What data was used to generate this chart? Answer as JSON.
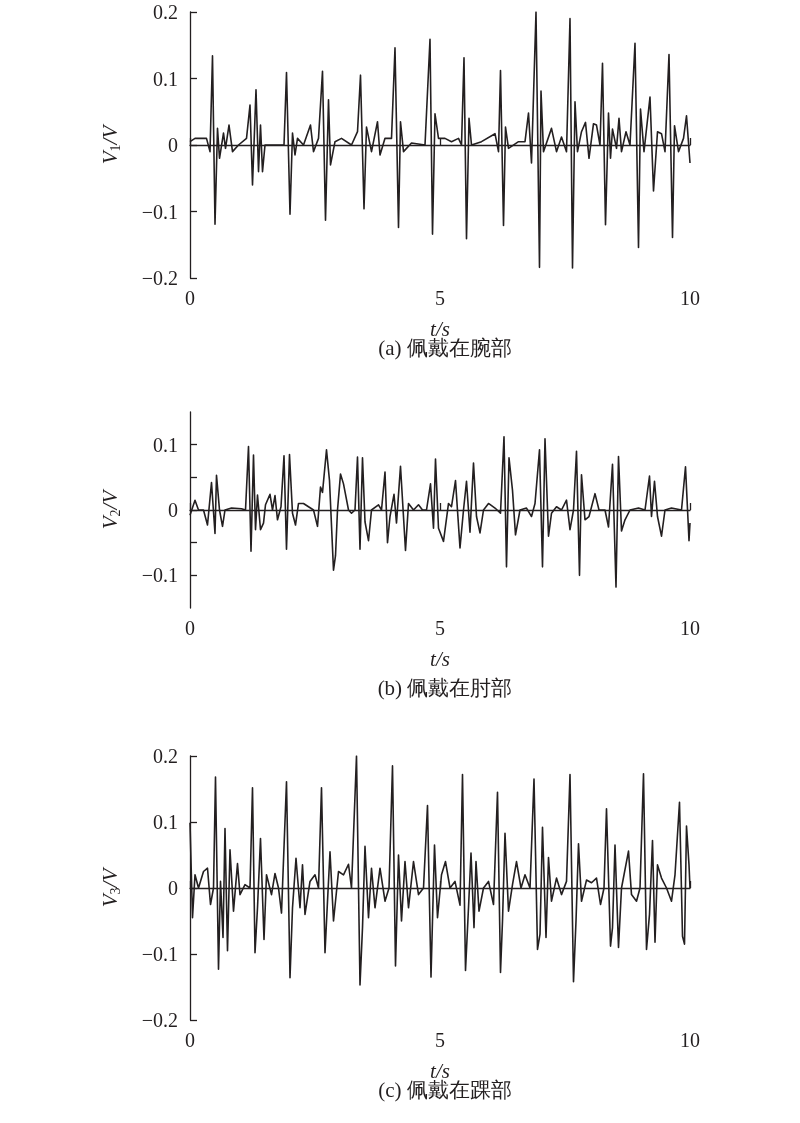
{
  "chart_data": [
    {
      "type": "line",
      "title": "(a) 佩戴在腕部",
      "xlabel": "t/s",
      "ylabel": "V$_{1}$/V",
      "xlim": [
        0,
        10
      ],
      "xticks": [
        0,
        5,
        10
      ],
      "ylim": [
        -0.2,
        0.2
      ],
      "yticks": [
        0.2,
        0.1,
        0,
        -0.1,
        -0.2
      ],
      "x": [
        0,
        0.1,
        0.33,
        0.4,
        0.45,
        0.5,
        0.55,
        0.59,
        0.67,
        0.71,
        0.78,
        0.85,
        0.97,
        1.13,
        1.2,
        1.25,
        1.32,
        1.37,
        1.41,
        1.45,
        1.5,
        1.63,
        1.88,
        1.93,
        2.0,
        2.05,
        2.1,
        2.15,
        2.27,
        2.41,
        2.47,
        2.57,
        2.65,
        2.71,
        2.77,
        2.81,
        2.9,
        3.03,
        3.23,
        3.35,
        3.41,
        3.48,
        3.53,
        3.63,
        3.75,
        3.8,
        3.9,
        4.03,
        4.1,
        4.17,
        4.21,
        4.27,
        4.43,
        4.7,
        4.8,
        4.85,
        4.9,
        4.97,
        5.1,
        5.23,
        5.37,
        5.43,
        5.48,
        5.53,
        5.58,
        5.63,
        5.83,
        6.1,
        6.17,
        6.21,
        6.27,
        6.31,
        6.37,
        6.57,
        6.7,
        6.77,
        6.83,
        6.92,
        6.99,
        7.02,
        7.07,
        7.23,
        7.33,
        7.43,
        7.53,
        7.6,
        7.65,
        7.7,
        7.75,
        7.83,
        7.91,
        7.98,
        8.07,
        8.13,
        8.2,
        8.25,
        8.31,
        8.37,
        8.41,
        8.45,
        8.53,
        8.58,
        8.63,
        8.72,
        8.8,
        8.9,
        8.97,
        9.01,
        9.08,
        9.2,
        9.27,
        9.35,
        9.43,
        9.5,
        9.58,
        9.65,
        9.69,
        9.77,
        9.87,
        9.93,
        10
      ],
      "series": [
        {
          "color": "#231f20",
          "values": [
            0.005,
            0.01,
            0.01,
            -0.01,
            0.134,
            -0.119,
            0.025,
            -0.02,
            0.018,
            -0.005,
            0.03,
            -0.01,
            0,
            0.01,
            0.06,
            -0.06,
            0.083,
            -0.04,
            0.03,
            -0.04,
            0,
            0,
            0,
            0.109,
            -0.104,
            0.018,
            -0.015,
            0.01,
            0,
            0.03,
            -0.01,
            0.01,
            0.111,
            -0.113,
            0.068,
            -0.03,
            0.005,
            0.01,
            0,
            0.02,
            0.105,
            -0.096,
            0.027,
            -0.01,
            0.035,
            -0.015,
            0.01,
            0.01,
            0.146,
            -0.124,
            0.035,
            -0.01,
            0.003,
            0,
            0.159,
            -0.134,
            0.047,
            0.01,
            0.01,
            0.005,
            0.01,
            0,
            0.131,
            -0.141,
            0.04,
            0,
            0.005,
            0.017,
            -0.01,
            0.112,
            -0.121,
            0.027,
            -0.005,
            0.005,
            0.005,
            0.048,
            -0.027,
            0.2,
            -0.184,
            0.081,
            -0.01,
            0.025,
            -0.01,
            0.012,
            -0.01,
            0.19,
            -0.185,
            0.065,
            -0.01,
            0.02,
            0.034,
            -0.02,
            0.032,
            0.03,
            0,
            0.123,
            -0.12,
            0.048,
            -0.02,
            0.024,
            -0.005,
            0.04,
            -0.01,
            0.02,
            0,
            0.153,
            -0.154,
            0.054,
            -0.01,
            0.072,
            -0.069,
            0.02,
            0.017,
            -0.01,
            0.136,
            -0.139,
            0.029,
            -0.01,
            0.01,
            0.044,
            -0.027
          ]
        }
      ]
    },
    {
      "type": "line",
      "title": "(b) 佩戴在肘部",
      "xlabel": "t/s",
      "ylabel": "V$_{2}$/V",
      "xlim": [
        0,
        10
      ],
      "xticks": [
        0,
        5,
        10
      ],
      "ylim": [
        -0.15,
        0.15
      ],
      "yticks": [
        0.1,
        {
          "value": 0.05,
          "label": null
        },
        0,
        {
          "value": -0.05,
          "label": null
        },
        -0.1
      ],
      "x": [
        0,
        0.1,
        0.17,
        0.27,
        0.35,
        0.43,
        0.5,
        0.53,
        0.59,
        0.65,
        0.7,
        0.83,
        1.03,
        1.11,
        1.17,
        1.22,
        1.27,
        1.31,
        1.35,
        1.41,
        1.47,
        1.51,
        1.6,
        1.65,
        1.7,
        1.75,
        1.82,
        1.88,
        1.93,
        1.99,
        2.05,
        2.11,
        2.17,
        2.27,
        2.37,
        2.47,
        2.55,
        2.61,
        2.65,
        2.73,
        2.79,
        2.87,
        2.91,
        2.95,
        3.01,
        3.07,
        3.17,
        3.23,
        3.3,
        3.35,
        3.4,
        3.45,
        3.5,
        3.57,
        3.63,
        3.77,
        3.83,
        3.9,
        3.95,
        4.0,
        4.08,
        4.13,
        4.21,
        4.31,
        4.37,
        4.47,
        4.57,
        4.65,
        4.73,
        4.81,
        4.87,
        4.91,
        4.97,
        5.07,
        5.17,
        5.23,
        5.31,
        5.4,
        5.47,
        5.53,
        5.6,
        5.67,
        5.73,
        5.8,
        5.87,
        5.97,
        6.1,
        6.21,
        6.28,
        6.33,
        6.38,
        6.45,
        6.51,
        6.6,
        6.73,
        6.83,
        6.9,
        6.99,
        7.05,
        7.1,
        7.17,
        7.23,
        7.33,
        7.43,
        7.53,
        7.6,
        7.67,
        7.73,
        7.79,
        7.83,
        7.9,
        7.98,
        8.1,
        8.18,
        8.3,
        8.37,
        8.45,
        8.52,
        8.57,
        8.63,
        8.7,
        8.8,
        8.97,
        9.1,
        9.19,
        9.23,
        9.29,
        9.35,
        9.43,
        9.5,
        9.63,
        9.83,
        9.91,
        9.98,
        10
      ],
      "series": [
        {
          "color": "#231f20",
          "values": [
            -0.008,
            0.015,
            0,
            0,
            -0.023,
            0.042,
            -0.036,
            0.053,
            0,
            -0.025,
            0,
            0.003,
            0.002,
            0,
            0.097,
            -0.063,
            0.084,
            -0.03,
            0.023,
            -0.03,
            -0.02,
            0.008,
            0.024,
            0,
            0.022,
            -0.015,
            0.005,
            0.083,
            -0.06,
            0.085,
            -0.005,
            -0.023,
            0.01,
            0.01,
            0.005,
            0,
            -0.025,
            0.035,
            0.027,
            0.092,
            0.045,
            -0.092,
            -0.07,
            0,
            0.055,
            0.04,
            0,
            -0.005,
            0,
            0.081,
            -0.06,
            0.08,
            -0.018,
            -0.047,
            0,
            0.008,
            0,
            0.058,
            -0.05,
            -0.01,
            0.024,
            -0.02,
            0.067,
            -0.062,
            0.01,
            0,
            0.008,
            0,
            0,
            0.04,
            -0.028,
            0.078,
            -0.028,
            -0.048,
            0.01,
            0.005,
            0.045,
            -0.058,
            0,
            0.044,
            -0.034,
            0.072,
            -0.01,
            -0.035,
            0,
            0.01,
            0.003,
            -0.005,
            0.112,
            -0.087,
            0.08,
            0.03,
            -0.038,
            0,
            0.003,
            -0.01,
            0.01,
            0.092,
            -0.087,
            0.109,
            -0.04,
            -0.005,
            0.005,
            0,
            0.015,
            -0.03,
            0,
            0.09,
            -0.1,
            0.054,
            -0.015,
            -0.01,
            0.025,
            0,
            0,
            -0.026,
            0.07,
            -0.118,
            0.082,
            -0.032,
            -0.015,
            0,
            0.003,
            0,
            0.052,
            -0.01,
            0.044,
            -0.01,
            -0.04,
            0,
            0.003,
            0,
            0.066,
            -0.047,
            -0.02
          ]
        }
      ]
    },
    {
      "type": "line",
      "title": "(c) 佩戴在踝部",
      "xlabel": "t/s",
      "ylabel": "V$_{3}$/V",
      "xlim": [
        0,
        10
      ],
      "xticks": [
        0,
        5,
        10
      ],
      "ylim": [
        -0.2,
        0.2
      ],
      "yticks": [
        0.2,
        0.1,
        0,
        -0.1,
        -0.2
      ],
      "x": [
        0,
        0.05,
        0.1,
        0.17,
        0.27,
        0.35,
        0.41,
        0.47,
        0.51,
        0.57,
        0.61,
        0.66,
        0.7,
        0.75,
        0.8,
        0.87,
        0.95,
        1.0,
        1.1,
        1.2,
        1.25,
        1.3,
        1.35,
        1.41,
        1.48,
        1.53,
        1.63,
        1.7,
        1.77,
        1.83,
        1.93,
        2.0,
        2.05,
        2.12,
        2.2,
        2.25,
        2.3,
        2.4,
        2.5,
        2.57,
        2.63,
        2.7,
        2.75,
        2.8,
        2.87,
        2.97,
        3.07,
        3.17,
        3.23,
        3.33,
        3.4,
        3.45,
        3.5,
        3.57,
        3.63,
        3.7,
        3.8,
        3.9,
        3.98,
        4.05,
        4.11,
        4.17,
        4.23,
        4.3,
        4.37,
        4.47,
        4.57,
        4.67,
        4.75,
        4.82,
        4.89,
        4.95,
        5.03,
        5.11,
        5.2,
        5.3,
        5.4,
        5.45,
        5.51,
        5.57,
        5.62,
        5.68,
        5.72,
        5.78,
        5.87,
        5.97,
        6.07,
        6.15,
        6.21,
        6.25,
        6.3,
        6.37,
        6.45,
        6.53,
        6.62,
        6.7,
        6.8,
        6.88,
        6.95,
        7.0,
        7.05,
        7.12,
        7.17,
        7.23,
        7.33,
        7.43,
        7.53,
        7.6,
        7.67,
        7.72,
        7.77,
        7.83,
        7.93,
        8.03,
        8.13,
        8.21,
        8.28,
        8.33,
        8.41,
        8.45,
        8.5,
        8.57,
        8.63,
        8.77,
        8.83,
        8.93,
        9.0,
        9.07,
        9.13,
        9.19,
        9.25,
        9.3,
        9.35,
        9.43,
        9.53,
        9.63,
        9.7,
        9.79,
        9.85,
        9.89,
        9.93,
        9.98,
        10
      ],
      "series": [
        {
          "color": "#231f20",
          "values": [
            0.099,
            -0.045,
            0.02,
            0,
            0.025,
            0.03,
            -0.025,
            0,
            0.168,
            -0.123,
            0.01,
            -0.075,
            0.09,
            -0.095,
            0.058,
            -0.035,
            0.037,
            -0.01,
            0.005,
            0,
            0.152,
            -0.098,
            -0.03,
            0.075,
            -0.078,
            0.02,
            -0.01,
            0.022,
            0,
            -0.038,
            0.161,
            -0.136,
            -0.03,
            0.045,
            -0.03,
            0.035,
            -0.04,
            0.01,
            0.02,
            0,
            0.152,
            -0.098,
            -0.02,
            0.055,
            -0.05,
            0.025,
            0.02,
            0.036,
            0,
            0.2,
            -0.147,
            -0.06,
            0.063,
            -0.045,
            0.03,
            -0.03,
            0.03,
            -0.02,
            0,
            0.185,
            -0.118,
            0.05,
            -0.05,
            0.04,
            -0.03,
            0.04,
            -0.01,
            0,
            0.125,
            -0.135,
            0.065,
            -0.045,
            0.02,
            0.04,
            0,
            0.01,
            -0.026,
            0.172,
            -0.125,
            -0.03,
            0.053,
            -0.06,
            0.04,
            -0.035,
            0,
            0.01,
            -0.025,
            0.145,
            -0.128,
            -0.05,
            0.083,
            -0.035,
            0.005,
            0.04,
            0,
            0.02,
            0,
            0.165,
            -0.093,
            -0.07,
            0.092,
            -0.075,
            0.046,
            -0.02,
            0.015,
            -0.01,
            0.01,
            0.172,
            -0.142,
            -0.05,
            0.067,
            -0.02,
            0.012,
            0.008,
            0.015,
            -0.025,
            0,
            0.12,
            -0.088,
            -0.06,
            0.065,
            -0.09,
            0,
            0.056,
            -0.01,
            -0.02,
            0,
            0.173,
            -0.093,
            -0.04,
            0.072,
            -0.082,
            0.035,
            0.015,
            0,
            -0.02,
            0.02,
            0.13,
            -0.073,
            -0.085,
            0.094,
            0.035,
            0
          ]
        }
      ]
    }
  ]
}
